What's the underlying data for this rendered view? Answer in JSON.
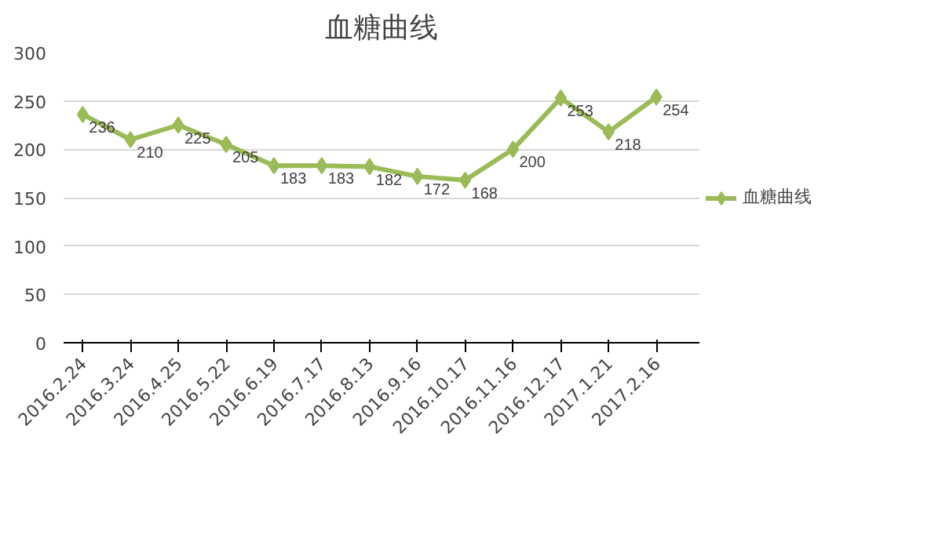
{
  "chart_data": {
    "type": "line",
    "title": "血糖曲线",
    "categories": [
      "2016.2.24",
      "2016.3.24",
      "2016.4.25",
      "2016.5.22",
      "2016.6.19",
      "2016.7.17",
      "2016.8.13",
      "2016.9.16",
      "2016.10.17",
      "2016.11.16",
      "2016.12.17",
      "2017.1.21",
      "2017.2.16"
    ],
    "series": [
      {
        "name": "血糖曲线",
        "color": "#9bbb59",
        "values": [
          236,
          210,
          225,
          205,
          183,
          183,
          182,
          172,
          168,
          200,
          253,
          218,
          254
        ]
      }
    ],
    "ylim": [
      0,
      300
    ],
    "yticks": [
      0,
      50,
      100,
      150,
      200,
      250,
      300
    ],
    "grid": "y",
    "legend": "right",
    "marker": "diamond",
    "line_style": "solid",
    "data_labels": true
  }
}
